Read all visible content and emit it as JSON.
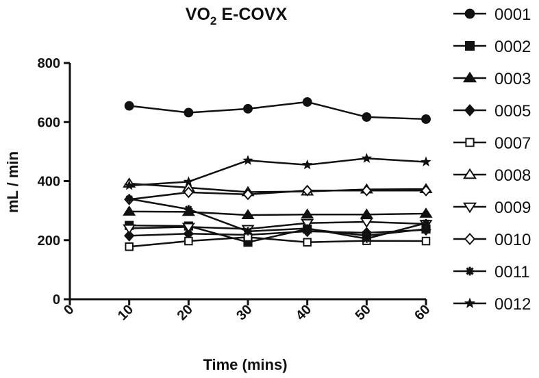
{
  "chart_data": {
    "type": "line",
    "title": "VO",
    "title_subscript": "2",
    "title_suffix": " E-COVX",
    "xlabel": "Time (mins)",
    "ylabel": "mL / min",
    "xlim": [
      0,
      60
    ],
    "ylim": [
      0,
      800
    ],
    "x_ticks": [
      0,
      10,
      20,
      30,
      40,
      50,
      60
    ],
    "y_ticks": [
      0,
      200,
      400,
      600,
      800
    ],
    "x": [
      10,
      20,
      30,
      40,
      50,
      60
    ],
    "grid": false,
    "legend_position": "right",
    "series": [
      {
        "name": "0001",
        "marker": "circle",
        "values": [
          655,
          632,
          645,
          668,
          617,
          610
        ]
      },
      {
        "name": "0002",
        "marker": "square",
        "values": [
          250,
          248,
          193,
          238,
          215,
          238
        ]
      },
      {
        "name": "0003",
        "marker": "triangle",
        "values": [
          297,
          296,
          285,
          287,
          287,
          290
        ]
      },
      {
        "name": "0005",
        "marker": "diamond",
        "values": [
          215,
          222,
          218,
          230,
          225,
          235
        ]
      },
      {
        "name": "0007",
        "marker": "square-open",
        "values": [
          178,
          197,
          210,
          193,
          198,
          197
        ]
      },
      {
        "name": "0008",
        "marker": "triangle-open",
        "values": [
          392,
          378,
          363,
          365,
          372,
          373
        ]
      },
      {
        "name": "0009",
        "marker": "triangle-down-open",
        "values": [
          240,
          245,
          238,
          258,
          262,
          255
        ]
      },
      {
        "name": "0010",
        "marker": "diamond-open",
        "values": [
          338,
          362,
          355,
          368,
          368,
          368
        ]
      },
      {
        "name": "0011",
        "marker": "asterisk",
        "values": [
          340,
          305,
          230,
          240,
          205,
          258
        ]
      },
      {
        "name": "0012",
        "marker": "star",
        "values": [
          385,
          398,
          470,
          455,
          477,
          465
        ]
      }
    ]
  }
}
